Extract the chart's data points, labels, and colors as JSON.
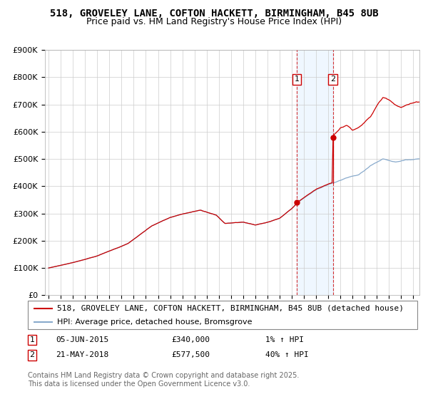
{
  "title": "518, GROVELEY LANE, COFTON HACKETT, BIRMINGHAM, B45 8UB",
  "subtitle": "Price paid vs. HM Land Registry's House Price Index (HPI)",
  "ylim": [
    0,
    900000
  ],
  "yticks": [
    0,
    100000,
    200000,
    300000,
    400000,
    500000,
    600000,
    700000,
    800000,
    900000
  ],
  "ytick_labels": [
    "£0",
    "£100K",
    "£200K",
    "£300K",
    "£400K",
    "£500K",
    "£600K",
    "£700K",
    "£800K",
    "£900K"
  ],
  "xlim_start": 1994.7,
  "xlim_end": 2025.5,
  "background_color": "#ffffff",
  "grid_color": "#cccccc",
  "sale1_date": 2015.42,
  "sale1_price": 340000,
  "sale2_date": 2018.38,
  "sale2_price": 577500,
  "shade_color": "#ddeeff",
  "shade_alpha": 0.45,
  "red_line_color": "#cc0000",
  "blue_line_color": "#88aacc",
  "marker_color": "#cc0000",
  "vline_color": "#cc0000",
  "legend_entry1": "518, GROVELEY LANE, COFTON HACKETT, BIRMINGHAM, B45 8UB (detached house)",
  "legend_entry2": "HPI: Average price, detached house, Bromsgrove",
  "note1_date": "05-JUN-2015",
  "note1_price": "£340,000",
  "note1_hpi": "1% ↑ HPI",
  "note2_date": "21-MAY-2018",
  "note2_price": "£577,500",
  "note2_hpi": "40% ↑ HPI",
  "footer": "Contains HM Land Registry data © Crown copyright and database right 2025.\nThis data is licensed under the Open Government Licence v3.0.",
  "title_fontsize": 10,
  "subtitle_fontsize": 9,
  "tick_fontsize": 8,
  "legend_fontsize": 8,
  "note_fontsize": 8,
  "footer_fontsize": 7
}
